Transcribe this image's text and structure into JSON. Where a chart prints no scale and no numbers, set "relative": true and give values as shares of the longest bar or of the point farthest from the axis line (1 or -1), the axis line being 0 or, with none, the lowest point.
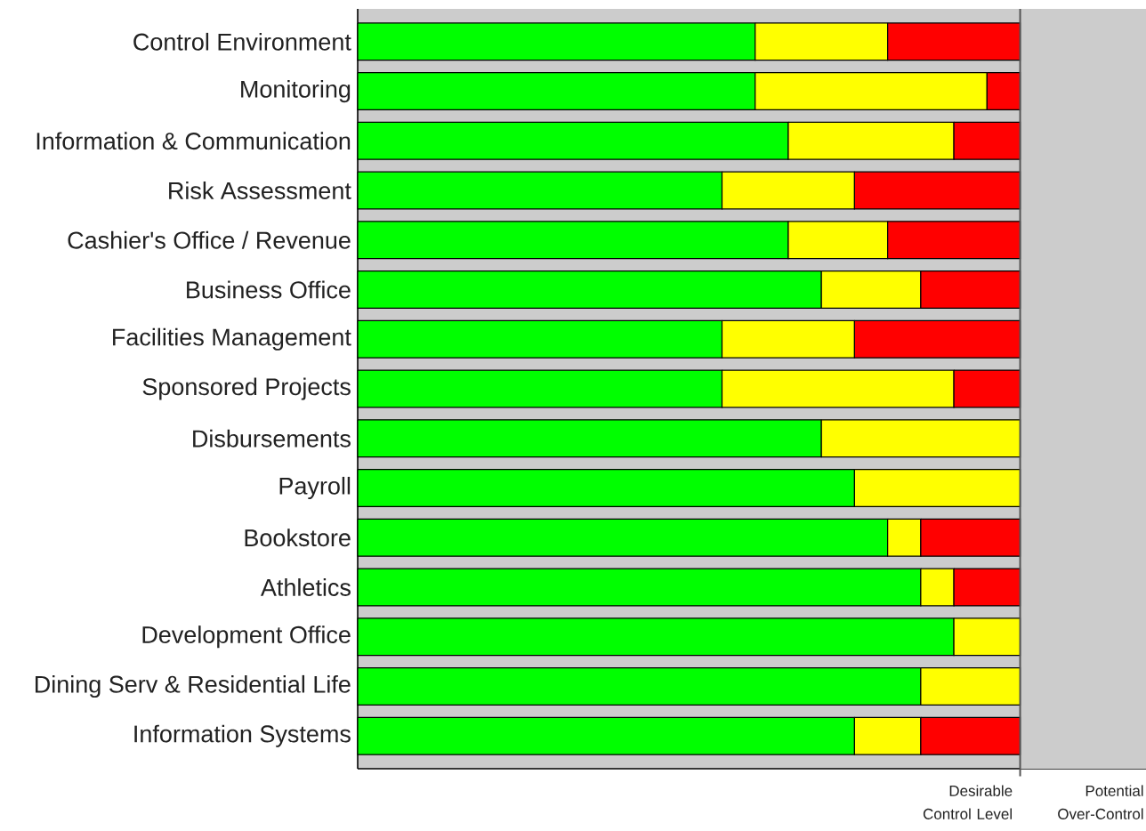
{
  "chart_data": {
    "type": "bar",
    "orientation": "horizontal",
    "stacked": true,
    "relative": true,
    "tick_labels": "y",
    "categories": [
      "Control Environment",
      "Monitoring",
      "Information & Communication",
      "Risk Assessment",
      "Cashier's Office / Revenue",
      "Business Office",
      "Facilities Management",
      "Sponsored Projects",
      "Disbursements",
      "Payroll",
      "Bookstore",
      "Athletics",
      "Development Office",
      "Dining Serv & Residential Life",
      "Information Systems"
    ],
    "series": [
      {
        "color": "#00ff00",
        "values": [
          0.6,
          0.6,
          0.65,
          0.55,
          0.65,
          0.7,
          0.55,
          0.55,
          0.7,
          0.75,
          0.8,
          0.85,
          0.9,
          0.85,
          0.75
        ]
      },
      {
        "color": "#ffff00",
        "values": [
          0.2,
          0.35,
          0.25,
          0.2,
          0.15,
          0.15,
          0.2,
          0.35,
          0.3,
          0.25,
          0.05,
          0.05,
          0.1,
          0.15,
          0.1
        ]
      },
      {
        "color": "#ff0000",
        "values": [
          0.2,
          0.05,
          0.1,
          0.25,
          0.2,
          0.15,
          0.25,
          0.1,
          null,
          null,
          0.15,
          0.1,
          null,
          null,
          0.15
        ]
      }
    ],
    "ref_lines": [
      {
        "axis": "x",
        "value": 1,
        "label": "Desirable Control Level",
        "color": "#555555"
      }
    ],
    "bands": [
      {
        "axis": "x",
        "from": 1,
        "to": 1.19,
        "label": "Potential Over-Control",
        "color": "#cccccc"
      }
    ]
  }
}
